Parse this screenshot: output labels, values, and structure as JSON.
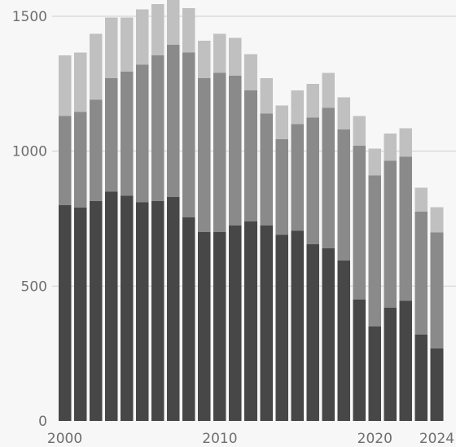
{
  "chart_data": {
    "type": "bar",
    "stacked": true,
    "x": [
      2000,
      2001,
      2002,
      2003,
      2004,
      2005,
      2006,
      2007,
      2008,
      2009,
      2010,
      2011,
      2012,
      2013,
      2014,
      2015,
      2016,
      2017,
      2018,
      2019,
      2020,
      2021,
      2022,
      2023,
      2024
    ],
    "series": [
      {
        "values": [
          800,
          790,
          815,
          850,
          835,
          810,
          815,
          830,
          755,
          700,
          700,
          725,
          740,
          725,
          690,
          705,
          655,
          640,
          595,
          450,
          350,
          420,
          445,
          320,
          268
        ],
        "color": "#474747"
      },
      {
        "values": [
          330,
          355,
          375,
          420,
          460,
          510,
          540,
          565,
          610,
          570,
          590,
          555,
          485,
          415,
          355,
          395,
          470,
          520,
          485,
          570,
          560,
          545,
          535,
          455,
          430
        ],
        "color": "#8a8a8a"
      },
      {
        "values": [
          225,
          220,
          245,
          225,
          200,
          205,
          190,
          170,
          165,
          140,
          145,
          140,
          135,
          130,
          125,
          125,
          125,
          130,
          120,
          110,
          100,
          100,
          105,
          90,
          95
        ],
        "color": "#c0c0c0"
      }
    ],
    "ylim": [
      0,
      1600
    ],
    "yticks": [
      {
        "value": 0,
        "label": "0"
      },
      {
        "value": 500,
        "label": "500"
      },
      {
        "value": 1000,
        "label": "1000"
      },
      {
        "value": 1500,
        "label": "1500"
      }
    ],
    "xticks": [
      {
        "value": 2000,
        "label": "2000"
      },
      {
        "value": 2010,
        "label": "2010"
      },
      {
        "value": 2020,
        "label": "2020"
      },
      {
        "value": 2024,
        "label": "2024"
      }
    ],
    "grid": true,
    "legend": "none"
  }
}
